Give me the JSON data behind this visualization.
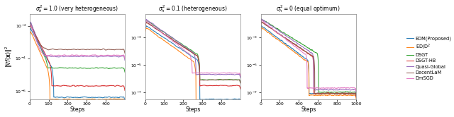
{
  "titles": [
    "$\\sigma_h^2 = 1.0$ (very heterogeneous)",
    "$\\sigma_h^2 = 0.1$ (heterogeneous)",
    "$\\sigma_h^2 = 0$ (equal optimum)"
  ],
  "xlabel": "Steps",
  "ylabel": "$\\|\\nabla f(\\mathbf{x})\\|^2$",
  "legend_labels": [
    "EDM(Proposed)",
    "ED/D$^2$",
    "DSGT",
    "DSGT-HB",
    "Quasi-Global",
    "DecentLaM",
    "DmSGD"
  ],
  "colors": [
    "#1f77b4",
    "#ff7f0e",
    "#2ca02c",
    "#d62728",
    "#9467bd",
    "#8c564b",
    "#e377c2"
  ],
  "background": "#ffffff",
  "panels": [
    {
      "xmax": 500,
      "xticks": [
        0,
        100,
        200,
        300,
        400
      ],
      "ylim": [
        3e-07,
        0.05
      ],
      "yticks": [
        1e-06,
        0.0001,
        0.01
      ],
      "curves": [
        {
          "start": 0.008,
          "plateau": 4e-07,
          "plateau_start": 120,
          "rise": false,
          "rise_to": null
        },
        {
          "start": 0.006,
          "plateau": 3e-07,
          "plateau_start": 100,
          "rise": false,
          "rise_to": null
        },
        {
          "start": 0.02,
          "plateau": 2.5e-05,
          "plateau_start": 90,
          "rise": false,
          "rise_to": null
        },
        {
          "start": 0.015,
          "plateau": 2e-06,
          "plateau_start": 110,
          "rise": true,
          "rise_to": 2e-06
        },
        {
          "start": 0.025,
          "plateau": 0.00013,
          "plateau_start": 80,
          "rise": false,
          "rise_to": null
        },
        {
          "start": 0.015,
          "plateau": 0.00035,
          "plateau_start": 90,
          "rise": false,
          "rise_to": null
        },
        {
          "start": 0.02,
          "plateau": 0.00015,
          "plateau_start": 70,
          "rise": false,
          "rise_to": null
        }
      ]
    },
    {
      "xmax": 500,
      "xticks": [
        0,
        100,
        200,
        300,
        400
      ],
      "ylim": [
        3e-08,
        0.05
      ],
      "yticks": [
        1e-07,
        1e-05,
        0.001
      ],
      "curves": [
        {
          "start": 0.008,
          "plateau": 3e-08,
          "plateau_start": 280,
          "rise": false,
          "rise_to": null
        },
        {
          "start": 0.006,
          "plateau": 2e-08,
          "plateau_start": 260,
          "rise": false,
          "rise_to": null
        },
        {
          "start": 0.02,
          "plateau": 8e-07,
          "plateau_start": 280,
          "rise": false,
          "rise_to": null
        },
        {
          "start": 0.015,
          "plateau": 3e-07,
          "plateau_start": 280,
          "rise": false,
          "rise_to": null
        },
        {
          "start": 0.025,
          "plateau": 2e-06,
          "plateau_start": 260,
          "rise": false,
          "rise_to": null
        },
        {
          "start": 0.015,
          "plateau": 8e-07,
          "plateau_start": 280,
          "rise": false,
          "rise_to": null
        },
        {
          "start": 0.02,
          "plateau": 2.5e-06,
          "plateau_start": 240,
          "rise": false,
          "rise_to": null
        }
      ]
    },
    {
      "xmax": 1000,
      "xticks": [
        0,
        200,
        400,
        600,
        800,
        1000
      ],
      "ylim": [
        3e-08,
        0.05
      ],
      "yticks": [
        1e-07,
        1e-05,
        0.001
      ],
      "curves": [
        {
          "start": 0.008,
          "plateau": 8e-08,
          "plateau_start": 500,
          "rise": false,
          "rise_to": null
        },
        {
          "start": 0.006,
          "plateau": 6e-08,
          "plateau_start": 500,
          "rise": false,
          "rise_to": null
        },
        {
          "start": 0.025,
          "plateau": 1e-07,
          "plateau_start": 600,
          "rise": false,
          "rise_to": null
        },
        {
          "start": 0.015,
          "plateau": 8e-08,
          "plateau_start": 550,
          "rise": false,
          "rise_to": null
        },
        {
          "start": 0.025,
          "plateau": 1.5e-07,
          "plateau_start": 550,
          "rise": false,
          "rise_to": null
        },
        {
          "start": 0.015,
          "plateau": 8e-08,
          "plateau_start": 560,
          "rise": false,
          "rise_to": null
        },
        {
          "start": 0.02,
          "plateau": 2e-07,
          "plateau_start": 480,
          "rise": false,
          "rise_to": null
        }
      ]
    }
  ]
}
